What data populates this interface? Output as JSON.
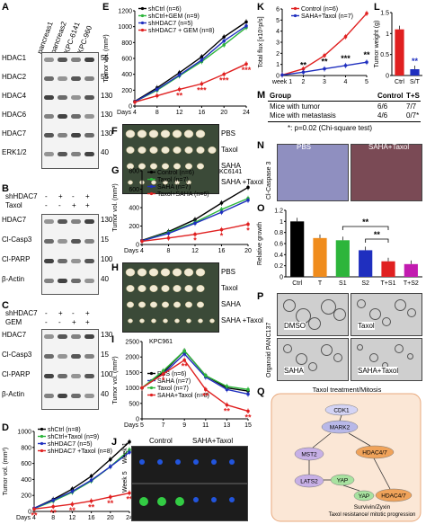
{
  "A": {
    "letter": "A",
    "cols": [
      "pancreas1",
      "pancreas2",
      "KPC-6141",
      "KPC-960"
    ],
    "rows": [
      "HDAC1",
      "HDAC2",
      "HDAC4",
      "HDAC6",
      "HDAC7",
      "ERK1/2"
    ],
    "mw": [
      "55",
      "55",
      "130",
      "130",
      "130",
      "40"
    ]
  },
  "B": {
    "letter": "B",
    "header_rows": [
      [
        "shHDAC7",
        "-",
        "+",
        "-",
        "+"
      ],
      [
        "Taxol",
        "-",
        "-",
        "+",
        "+"
      ]
    ],
    "rows": [
      "HDAC7",
      "Cl-Casp3",
      "Cl-PARP",
      "β-Actin"
    ],
    "mw": [
      "130",
      "15",
      "100",
      "40"
    ]
  },
  "C": {
    "letter": "C",
    "header_rows": [
      [
        "shHDAC7",
        "-",
        "+",
        "-",
        "+"
      ],
      [
        "GEM",
        "-",
        "-",
        "+",
        "+"
      ]
    ],
    "rows": [
      "HDAC7",
      "Cl-Casp3",
      "Cl-PARP",
      "β-Actin"
    ],
    "mw": [
      "130",
      "15",
      "100",
      "40"
    ]
  },
  "D": {
    "letter": "D",
    "chart_data": {
      "type": "line",
      "x": [
        4,
        8,
        12,
        16,
        20,
        24
      ],
      "xlabel": "Days",
      "ylabel": "Tumor vol. (mm³)",
      "ylim": [
        0,
        1000
      ],
      "yticks": [
        0,
        200,
        400,
        600,
        800,
        1000
      ],
      "series": [
        {
          "name": "shCtrl (n=8)",
          "color": "#000000",
          "values": [
            40,
            150,
            280,
            440,
            650,
            870
          ]
        },
        {
          "name": "shCtrl+Taxol (n=9)",
          "color": "#2db53b",
          "values": [
            35,
            130,
            240,
            380,
            560,
            770
          ]
        },
        {
          "name": "shHDAC7 (n=5)",
          "color": "#1f2fbf",
          "values": [
            40,
            140,
            250,
            390,
            560,
            740
          ]
        },
        {
          "name": "shHDAC7 +Taxol (n=8)",
          "color": "#e02020",
          "values": [
            30,
            60,
            90,
            130,
            180,
            230
          ]
        }
      ],
      "annotations": [
        "**",
        "**",
        "**",
        "**",
        "**",
        "**"
      ]
    }
  },
  "E": {
    "letter": "E",
    "chart_data": {
      "type": "line",
      "x": [
        4,
        8,
        12,
        16,
        20,
        24
      ],
      "xlabel": "Days",
      "ylabel": "Tumor vol. (mm³)",
      "ylim": [
        0,
        1200
      ],
      "yticks": [
        0,
        200,
        400,
        600,
        800,
        1000,
        1200
      ],
      "series": [
        {
          "name": "shCtrl (n=6)",
          "color": "#000000",
          "values": [
            60,
            230,
            420,
            620,
            870,
            1060
          ]
        },
        {
          "name": "shCtrl+GEM (n=9)",
          "color": "#2db53b",
          "values": [
            55,
            200,
            380,
            560,
            770,
            990
          ]
        },
        {
          "name": "shHDAC7 (n=5)",
          "color": "#1f2fbf",
          "values": [
            55,
            210,
            390,
            580,
            820,
            1010
          ]
        },
        {
          "name": "shHDAC7 + GEM (n=8)",
          "color": "#e02020",
          "values": [
            50,
            130,
            210,
            280,
            400,
            530
          ]
        }
      ],
      "annotations": [
        "**",
        "***",
        "***",
        "***"
      ]
    }
  },
  "F": {
    "letter": "F",
    "labels": [
      "PBS",
      "Taxol",
      "SAHA",
      "SAHA +Taxol"
    ]
  },
  "G": {
    "letter": "G",
    "chart_data": {
      "type": "line",
      "x": [
        4,
        8,
        12,
        16,
        20
      ],
      "xlabel": "Days",
      "ylabel": "Tumor vol. (mm³)",
      "ylim": [
        0,
        800
      ],
      "yticks": [
        0,
        200,
        400,
        600,
        800
      ],
      "title": "KC6141",
      "series": [
        {
          "name": "Control (n=6)",
          "color": "#000000",
          "values": [
            45,
            140,
            270,
            450,
            620
          ]
        },
        {
          "name": "Taxol (n=7)",
          "color": "#2db53b",
          "values": [
            40,
            130,
            240,
            380,
            500
          ]
        },
        {
          "name": "SAHA (n=7)",
          "color": "#1f2fbf",
          "values": [
            40,
            120,
            230,
            350,
            480
          ]
        },
        {
          "name": "Taxol+SAHA (n=6)",
          "color": "#e02020",
          "values": [
            35,
            70,
            110,
            160,
            220
          ]
        }
      ],
      "annotations": [
        "*",
        "*",
        "*"
      ]
    }
  },
  "H": {
    "letter": "H",
    "labels": [
      "PBS",
      "Taxol",
      "SAHA",
      "SAHA +Taxol"
    ]
  },
  "I": {
    "letter": "I",
    "chart_data": {
      "type": "line",
      "x": [
        5,
        7,
        9,
        11,
        13,
        15
      ],
      "xlabel": "Days",
      "ylabel": "Tumor vol. (mm³)",
      "ylim": [
        0,
        2500
      ],
      "yticks": [
        0,
        500,
        1000,
        1500,
        2000,
        2500
      ],
      "title": "KPC961",
      "series": [
        {
          "name": "PBS (n=6)",
          "color": "#000000",
          "values": [
            1000,
            1500,
            2200,
            1400,
            1000,
            900
          ]
        },
        {
          "name": "SAHA (n=7)",
          "color": "#1f2fbf",
          "values": [
            1000,
            1450,
            2100,
            1350,
            950,
            800
          ]
        },
        {
          "name": "Taxol (n=7)",
          "color": "#2db53b",
          "values": [
            1000,
            1550,
            2200,
            1400,
            1050,
            950
          ]
        },
        {
          "name": "SAHA+Taxol (n=8)",
          "color": "#e02020",
          "values": [
            1000,
            1450,
            1900,
            950,
            450,
            250
          ]
        }
      ],
      "annotations": [
        "*",
        "**",
        "**",
        "**",
        "**"
      ]
    }
  },
  "J": {
    "letter": "J",
    "groups": [
      "Control",
      "SAHA+Taxol"
    ],
    "rows": [
      "Week 1",
      "Week 5"
    ]
  },
  "K": {
    "letter": "K",
    "chart_data": {
      "type": "line",
      "x": [
        "week 1",
        "2",
        "3",
        "4",
        "5"
      ],
      "ylabel": "Total flux [x10⁹p/s]",
      "ylim": [
        0,
        6
      ],
      "yticks": [
        0,
        1,
        2,
        3,
        4,
        5,
        6
      ],
      "series": [
        {
          "name": "Control (n=6)",
          "color": "#e02020",
          "values": [
            0.05,
            0.6,
            1.8,
            3.5,
            5.6
          ]
        },
        {
          "name": "SAHA+Taxol (n=7)",
          "color": "#1f2fbf",
          "values": [
            0.05,
            0.3,
            0.6,
            0.9,
            1.2
          ]
        }
      ],
      "annotations": [
        "**",
        "**",
        "***",
        "**"
      ]
    }
  },
  "L": {
    "letter": "L",
    "chart_data": {
      "type": "bar",
      "categories": [
        "Ctrl",
        "S/T"
      ],
      "values": [
        1.1,
        0.15
      ],
      "colors": [
        "#e02020",
        "#1f2fbf"
      ],
      "ylabel": "Tumor weight (g)",
      "ylim": [
        0,
        1.5
      ],
      "yticks": [
        0,
        0.5,
        1,
        1.5
      ],
      "annotations": [
        "**"
      ]
    }
  },
  "M": {
    "letter": "M",
    "header": [
      "Group",
      "Control",
      "T+S"
    ],
    "rows": [
      [
        "Mice with tumor",
        "6/6",
        "7/7"
      ],
      [
        "Mice with metastasis",
        "4/6",
        "0/7*"
      ]
    ],
    "footnote": "*: p=0.02 (Chi-square test)"
  },
  "N": {
    "letter": "N",
    "labels": [
      "PBS",
      "SAHA+Taxol"
    ],
    "ylabel": "Cl-Caspase 3"
  },
  "O": {
    "letter": "O",
    "chart_data": {
      "type": "bar",
      "categories": [
        "Ctrl",
        "T",
        "S1",
        "S2",
        "T+S1",
        "T+S2"
      ],
      "values": [
        1.0,
        0.7,
        0.66,
        0.48,
        0.28,
        0.23
      ],
      "colors": [
        "#000000",
        "#f08c1c",
        "#2db53b",
        "#1f2fbf",
        "#e02020",
        "#c21bb0"
      ],
      "ylabel": "Relative growth",
      "ylim": [
        0,
        1.2
      ],
      "yticks": [
        0,
        0.2,
        0.4,
        0.6,
        0.8,
        1.0,
        1.2
      ],
      "annotations": [
        "**",
        "**"
      ]
    }
  },
  "P": {
    "letter": "P",
    "labels": [
      "DMSO",
      "Taxol",
      "SAHA",
      "SAHA+Taxol"
    ],
    "ylabel": "Organoid PANC137"
  },
  "Q": {
    "letter": "Q",
    "title": "Taxol treatment/Mitosis",
    "nodes": [
      "CDK1",
      "MARK2",
      "MST2",
      "HDAC4/7",
      "LATS2",
      "YAP",
      "YAP",
      "HDAC4/7"
    ],
    "outcome1": "Survivin/Zyxin",
    "outcome2": "Taxol resistance/ mitotic progression"
  }
}
